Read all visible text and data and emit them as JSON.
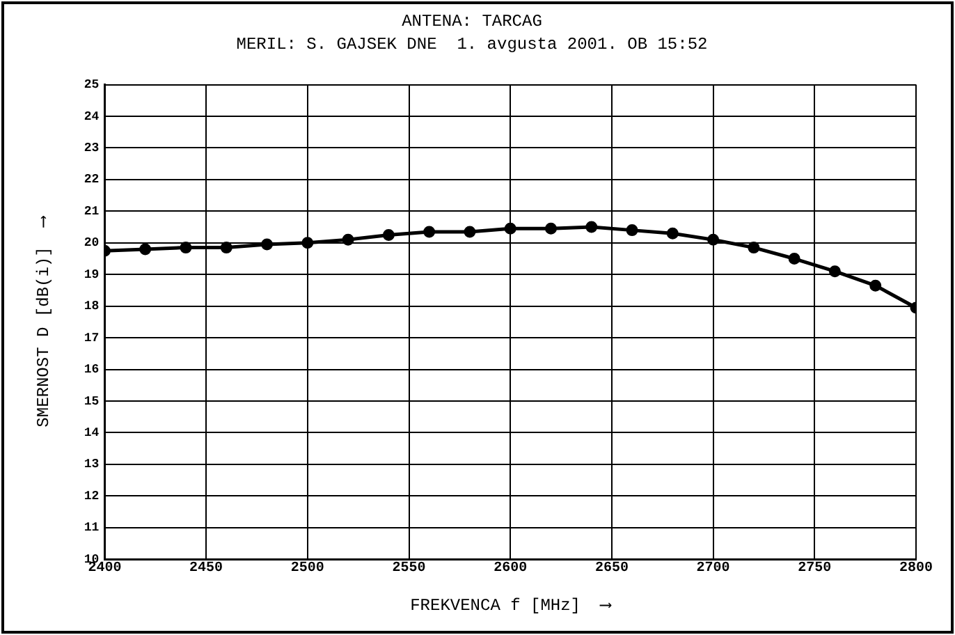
{
  "chart_data": {
    "type": "line",
    "title": "ANTENA: TARCAG",
    "subtitle": "MERIL: S. GAJSEK DNE  1. avgusta 2001. OB 15:52",
    "xlabel": "FREKVENCA f [MHz]  ⟶",
    "ylabel": "SMERNOST D [dB(i)]  ⟶",
    "x": [
      2400,
      2420,
      2440,
      2460,
      2480,
      2500,
      2520,
      2540,
      2560,
      2580,
      2600,
      2620,
      2640,
      2660,
      2680,
      2700,
      2720,
      2740,
      2760,
      2780,
      2800
    ],
    "series": [
      {
        "color": "#000000",
        "values": [
          19.75,
          19.8,
          19.85,
          19.85,
          19.95,
          20.0,
          20.1,
          20.25,
          20.35,
          20.35,
          20.45,
          20.45,
          20.5,
          20.4,
          20.3,
          20.1,
          19.85,
          19.5,
          19.1,
          18.65,
          17.95
        ]
      }
    ],
    "xlim": [
      2400,
      2800
    ],
    "xticks": [
      2400,
      2450,
      2500,
      2550,
      2600,
      2650,
      2700,
      2750,
      2800
    ],
    "ylim": [
      10,
      25
    ],
    "yticks": [
      10,
      11,
      12,
      13,
      14,
      15,
      16,
      17,
      18,
      19,
      20,
      21,
      22,
      23,
      24,
      25
    ],
    "grid": true,
    "legend": false,
    "marker": "circle",
    "line_style": "solid"
  }
}
